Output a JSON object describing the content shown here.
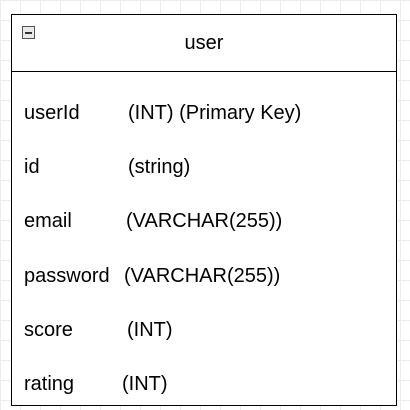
{
  "entity": {
    "title": "user",
    "fields": [
      {
        "name": "userId",
        "type": "(INT)  (Primary Key)"
      },
      {
        "name": "id",
        "type": "(string)"
      },
      {
        "name": "email",
        "type": "(VARCHAR(255))"
      },
      {
        "name": "password",
        "type": "(VARCHAR(255))"
      },
      {
        "name": "score",
        "type": "(INT)"
      },
      {
        "name": "rating",
        "type": "(INT)"
      }
    ]
  },
  "icons": {
    "collapse": "minus-square-icon"
  }
}
